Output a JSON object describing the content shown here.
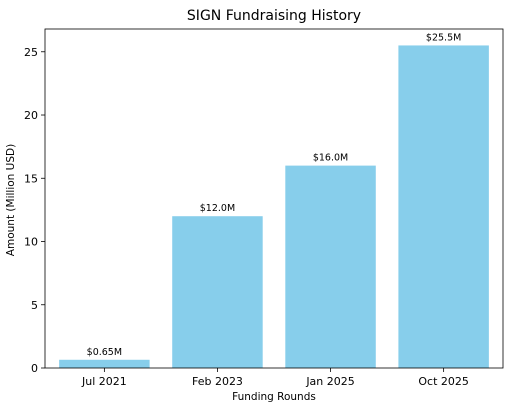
{
  "chart_data": {
    "type": "bar",
    "title": "SIGN Fundraising History",
    "xlabel": "Funding Rounds",
    "ylabel": "Amount (Million USD)",
    "categories": [
      "Jul 2021",
      "Feb 2023",
      "Jan 2025",
      "Oct 2025"
    ],
    "values": [
      0.65,
      12.0,
      16.0,
      25.5
    ],
    "data_labels": [
      "$0.65M",
      "$12.0M",
      "$16.0M",
      "$25.5M"
    ],
    "ylim": [
      0,
      26.8
    ],
    "yticks": [
      0,
      5,
      10,
      15,
      20,
      25
    ],
    "grid": false,
    "bar_color": "#87CEEB"
  }
}
